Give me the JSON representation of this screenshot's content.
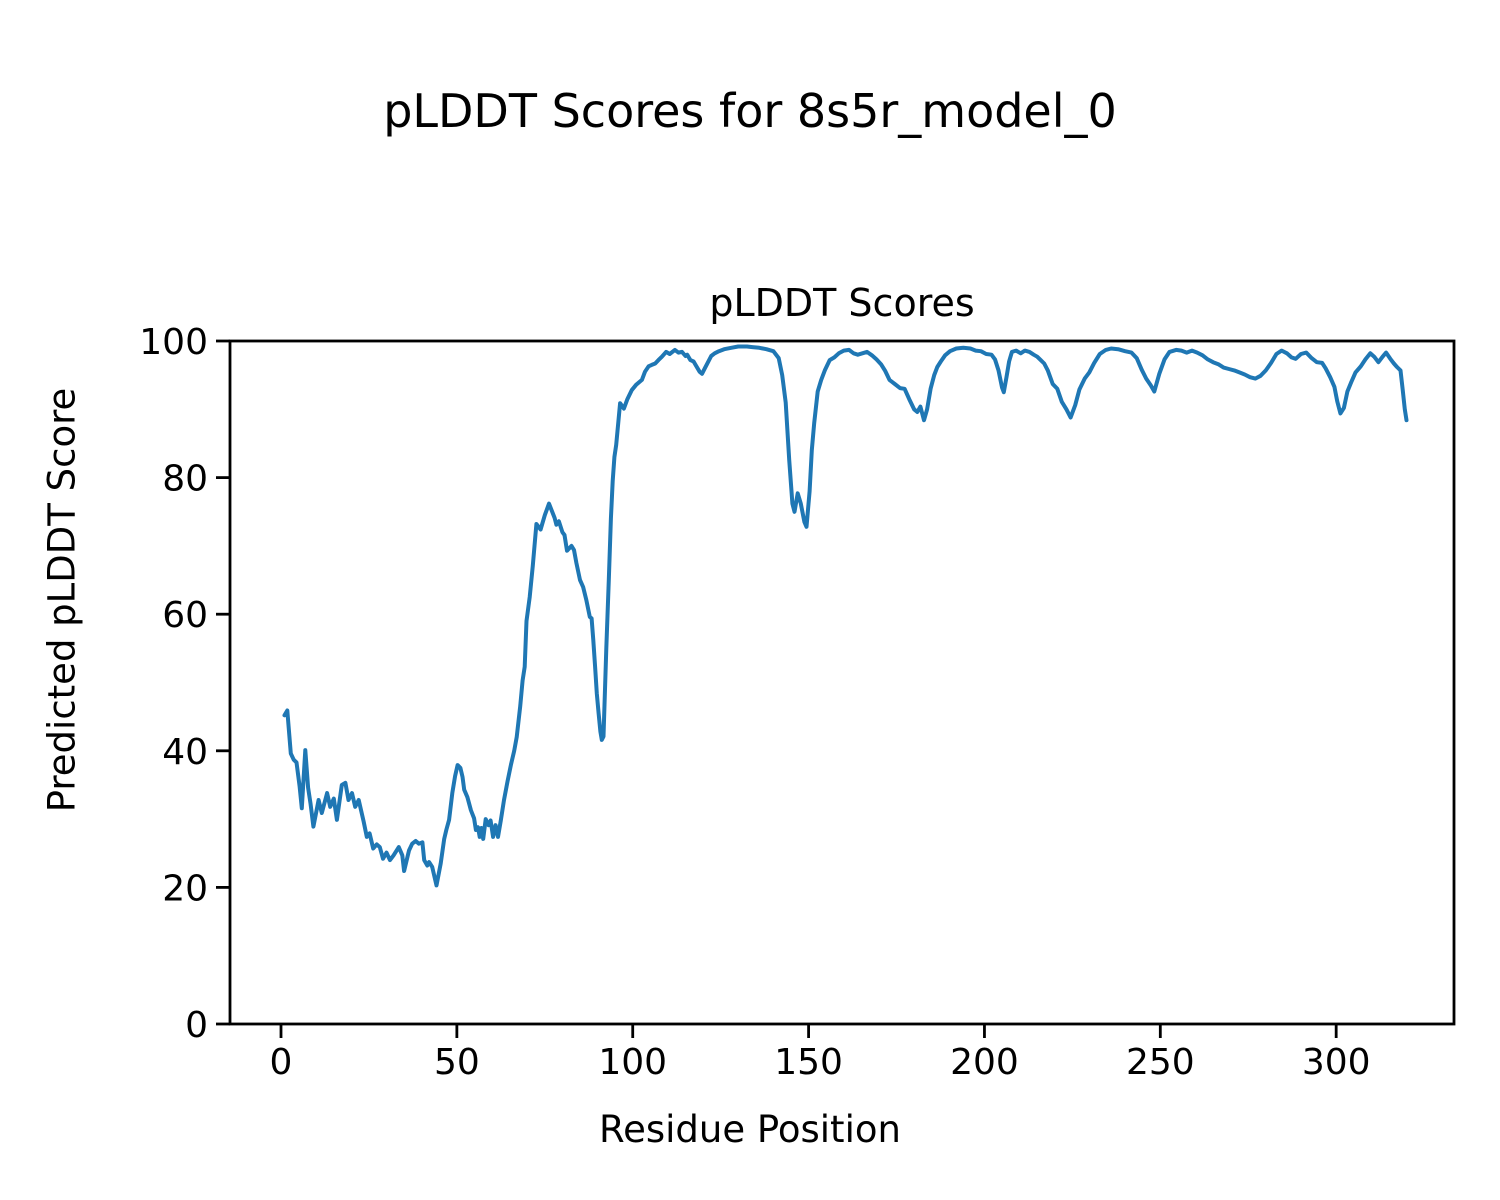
{
  "figure": {
    "title": "pLDDT Scores for 8s5r_model_0"
  },
  "chart_data": {
    "type": "line",
    "title": "pLDDT Scores for 8s5r_model_0",
    "axes_title": "pLDDT Scores",
    "xlabel": "Residue Position",
    "ylabel": "Predicted pLDDT Score",
    "xticks": [
      0,
      50,
      100,
      150,
      200,
      250,
      300
    ],
    "yticks": [
      0,
      20,
      40,
      60,
      80,
      100
    ],
    "xlim": [
      -14.5,
      333.5
    ],
    "ylim": [
      0,
      100
    ],
    "grid": false,
    "legend_position": "none",
    "line_color": "#1f77b4",
    "background_color": "#ffffff",
    "series": [
      {
        "name": "pLDDT",
        "points": [
          [
            1,
            45.2
          ],
          [
            1.8,
            45.9
          ],
          [
            2.8,
            39.6
          ],
          [
            3.6,
            38.7
          ],
          [
            4.4,
            38.3
          ],
          [
            5.3,
            34.8
          ],
          [
            5.9,
            31.6
          ],
          [
            6.9,
            40.1
          ],
          [
            7.7,
            34.6
          ],
          [
            8.4,
            32.3
          ],
          [
            9.2,
            28.9
          ],
          [
            10.7,
            32.8
          ],
          [
            11.6,
            30.9
          ],
          [
            13.1,
            33.8
          ],
          [
            14,
            31.8
          ],
          [
            15,
            33
          ],
          [
            15.9,
            29.9
          ],
          [
            17.3,
            35
          ],
          [
            18.3,
            35.3
          ],
          [
            19.2,
            32.8
          ],
          [
            20.2,
            33.8
          ],
          [
            21.1,
            31.8
          ],
          [
            22.1,
            32.8
          ],
          [
            23.5,
            29.6
          ],
          [
            24.4,
            27.4
          ],
          [
            25.2,
            27.9
          ],
          [
            26.2,
            25.7
          ],
          [
            27.2,
            26.3
          ],
          [
            28.1,
            25.9
          ],
          [
            29,
            24.2
          ],
          [
            30,
            25.1
          ],
          [
            31,
            24
          ],
          [
            32,
            24.7
          ],
          [
            33.5,
            25.9
          ],
          [
            34.5,
            24.7
          ],
          [
            35,
            22.4
          ],
          [
            36.4,
            25.4
          ],
          [
            37.3,
            26.4
          ],
          [
            38.3,
            26.8
          ],
          [
            39.2,
            26.4
          ],
          [
            40.2,
            26.6
          ],
          [
            40.7,
            24
          ],
          [
            41.6,
            23.2
          ],
          [
            42.1,
            23.7
          ],
          [
            43,
            23
          ],
          [
            44.2,
            20.3
          ],
          [
            45.4,
            23.5
          ],
          [
            46.4,
            27.1
          ],
          [
            47,
            28.4
          ],
          [
            47.8,
            29.9
          ],
          [
            48.7,
            33.8
          ],
          [
            49.5,
            36.3
          ],
          [
            50.2,
            37.9
          ],
          [
            51,
            37.5
          ],
          [
            51.6,
            36.2
          ],
          [
            52.1,
            34.3
          ],
          [
            53,
            33.2
          ],
          [
            54,
            31.3
          ],
          [
            54.9,
            30.1
          ],
          [
            55.4,
            28.4
          ],
          [
            56,
            28.8
          ],
          [
            56.5,
            27.4
          ],
          [
            57,
            28.7
          ],
          [
            57.5,
            27.1
          ],
          [
            58.2,
            30
          ],
          [
            59,
            29.1
          ],
          [
            59.6,
            29.8
          ],
          [
            60.3,
            27.4
          ],
          [
            61,
            29.1
          ],
          [
            61.7,
            27.4
          ],
          [
            62.5,
            29.8
          ],
          [
            63.4,
            32.8
          ],
          [
            64.4,
            35.5
          ],
          [
            65.4,
            38
          ],
          [
            66.3,
            40
          ],
          [
            67,
            42
          ],
          [
            68,
            46.5
          ],
          [
            68.7,
            50.3
          ],
          [
            69.3,
            52.3
          ],
          [
            69.8,
            59
          ],
          [
            70.7,
            62.5
          ],
          [
            71.6,
            67.1
          ],
          [
            72.6,
            73.2
          ],
          [
            73.8,
            72.4
          ],
          [
            75,
            74.5
          ],
          [
            76.2,
            76.2
          ],
          [
            77.8,
            74.1
          ],
          [
            78.3,
            73.1
          ],
          [
            79,
            73.6
          ],
          [
            80,
            72
          ],
          [
            80.6,
            71.6
          ],
          [
            81.3,
            69.3
          ],
          [
            82.6,
            70
          ],
          [
            83.3,
            69.4
          ],
          [
            84,
            67.5
          ],
          [
            85,
            65
          ],
          [
            85.9,
            64
          ],
          [
            86.8,
            62.1
          ],
          [
            87.8,
            59.6
          ],
          [
            88.3,
            59.4
          ],
          [
            88.8,
            56.2
          ],
          [
            89.3,
            52.3
          ],
          [
            89.8,
            48.4
          ],
          [
            90.3,
            45.5
          ],
          [
            90.8,
            42.8
          ],
          [
            91.2,
            41.6
          ],
          [
            91.7,
            42.1
          ],
          [
            92.5,
            55
          ],
          [
            93.2,
            65
          ],
          [
            93.8,
            74
          ],
          [
            94.3,
            79.5
          ],
          [
            94.8,
            83
          ],
          [
            95.3,
            84.8
          ],
          [
            96.4,
            90.9
          ],
          [
            97.5,
            90.1
          ],
          [
            98.5,
            91.5
          ],
          [
            99.7,
            92.8
          ],
          [
            101,
            93.6
          ],
          [
            102.6,
            94.3
          ],
          [
            103.5,
            95.5
          ],
          [
            104.5,
            96.3
          ],
          [
            105.4,
            96.5
          ],
          [
            106.4,
            96.7
          ],
          [
            107.3,
            97.2
          ],
          [
            108.3,
            97.7
          ],
          [
            109.5,
            98.4
          ],
          [
            110.5,
            98.1
          ],
          [
            112,
            98.7
          ],
          [
            113,
            98.3
          ],
          [
            114,
            98.4
          ],
          [
            115,
            97.8
          ],
          [
            115.5,
            98
          ],
          [
            116.4,
            97.2
          ],
          [
            117.3,
            97
          ],
          [
            118,
            96.4
          ],
          [
            119,
            95.5
          ],
          [
            119.7,
            95.2
          ],
          [
            120.5,
            96
          ],
          [
            121.3,
            96.8
          ],
          [
            122.3,
            97.8
          ],
          [
            123.3,
            98.2
          ],
          [
            124.5,
            98.5
          ],
          [
            126,
            98.8
          ],
          [
            128,
            99
          ],
          [
            130,
            99.2
          ],
          [
            132.5,
            99.2
          ],
          [
            134,
            99.1
          ],
          [
            136,
            99
          ],
          [
            138,
            98.8
          ],
          [
            140,
            98.5
          ],
          [
            141.5,
            97.5
          ],
          [
            142.5,
            95
          ],
          [
            143.5,
            91
          ],
          [
            144.5,
            82.6
          ],
          [
            145.4,
            76.2
          ],
          [
            146,
            75
          ],
          [
            146.9,
            77.7
          ],
          [
            147.8,
            76.2
          ],
          [
            148.8,
            73.5
          ],
          [
            149.4,
            72.8
          ],
          [
            150.3,
            78
          ],
          [
            150.9,
            84
          ],
          [
            151.6,
            88
          ],
          [
            152.6,
            92.6
          ],
          [
            153.6,
            94.3
          ],
          [
            154.6,
            95.7
          ],
          [
            156,
            97.2
          ],
          [
            157.3,
            97.6
          ],
          [
            158.6,
            98.2
          ],
          [
            160,
            98.6
          ],
          [
            161.5,
            98.7
          ],
          [
            162.8,
            98.2
          ],
          [
            164,
            98
          ],
          [
            165.3,
            98.2
          ],
          [
            166.6,
            98.4
          ],
          [
            168,
            97.9
          ],
          [
            169.3,
            97.3
          ],
          [
            170.6,
            96.6
          ],
          [
            171.8,
            95.6
          ],
          [
            173,
            94.3
          ],
          [
            174.5,
            93.7
          ],
          [
            176,
            93.1
          ],
          [
            177.3,
            93
          ],
          [
            178.6,
            91.5
          ],
          [
            180,
            90
          ],
          [
            180.9,
            89.6
          ],
          [
            181.8,
            90.4
          ],
          [
            182.8,
            88.4
          ],
          [
            183.7,
            90
          ],
          [
            184.7,
            93
          ],
          [
            185.7,
            95
          ],
          [
            186.6,
            96.2
          ],
          [
            187.6,
            97
          ],
          [
            188.8,
            97.9
          ],
          [
            190.2,
            98.5
          ],
          [
            192,
            98.9
          ],
          [
            194,
            99
          ],
          [
            196,
            98.9
          ],
          [
            197.5,
            98.6
          ],
          [
            199,
            98.5
          ],
          [
            200.5,
            98.1
          ],
          [
            202,
            98
          ],
          [
            203,
            97.3
          ],
          [
            204,
            95.7
          ],
          [
            205,
            93.2
          ],
          [
            205.5,
            92.5
          ],
          [
            206.3,
            94.8
          ],
          [
            207,
            97
          ],
          [
            207.8,
            98.4
          ],
          [
            209,
            98.6
          ],
          [
            210.3,
            98.2
          ],
          [
            211.5,
            98.6
          ],
          [
            212.8,
            98.4
          ],
          [
            214,
            98
          ],
          [
            215,
            97.7
          ],
          [
            216,
            97.2
          ],
          [
            217,
            96.7
          ],
          [
            218,
            95.7
          ],
          [
            219.4,
            93.7
          ],
          [
            220.7,
            93
          ],
          [
            222,
            91.1
          ],
          [
            223.3,
            90
          ],
          [
            224.5,
            88.8
          ],
          [
            225.8,
            90.6
          ],
          [
            227,
            92.9
          ],
          [
            228.5,
            94.5
          ],
          [
            229.8,
            95.4
          ],
          [
            231.2,
            96.8
          ],
          [
            232.8,
            98.1
          ],
          [
            234.5,
            98.7
          ],
          [
            236,
            98.9
          ],
          [
            238,
            98.8
          ],
          [
            240,
            98.5
          ],
          [
            241.8,
            98.3
          ],
          [
            243.3,
            97.5
          ],
          [
            244.7,
            95.8
          ],
          [
            246,
            94.5
          ],
          [
            247.3,
            93.5
          ],
          [
            248.3,
            92.6
          ],
          [
            249.7,
            95.2
          ],
          [
            251.2,
            97.3
          ],
          [
            252.6,
            98.4
          ],
          [
            254.5,
            98.7
          ],
          [
            256,
            98.6
          ],
          [
            257.5,
            98.3
          ],
          [
            259,
            98.6
          ],
          [
            260.5,
            98.3
          ],
          [
            262,
            97.9
          ],
          [
            263.5,
            97.3
          ],
          [
            265,
            96.9
          ],
          [
            266.5,
            96.6
          ],
          [
            268,
            96.1
          ],
          [
            269.5,
            95.9
          ],
          [
            271,
            95.7
          ],
          [
            272.5,
            95.4
          ],
          [
            274,
            95.1
          ],
          [
            275.5,
            94.7
          ],
          [
            277,
            94.5
          ],
          [
            278.5,
            94.9
          ],
          [
            280,
            95.7
          ],
          [
            281.5,
            96.8
          ],
          [
            283,
            98.1
          ],
          [
            284.5,
            98.6
          ],
          [
            286,
            98.2
          ],
          [
            287.3,
            97.6
          ],
          [
            288.5,
            97.4
          ],
          [
            290,
            98.1
          ],
          [
            291.5,
            98.3
          ],
          [
            293,
            97.5
          ],
          [
            294.5,
            96.9
          ],
          [
            296,
            96.8
          ],
          [
            297,
            96
          ],
          [
            298.3,
            94.7
          ],
          [
            299.5,
            93.3
          ],
          [
            300.3,
            91.2
          ],
          [
            301.2,
            89.4
          ],
          [
            302.2,
            90.2
          ],
          [
            303.2,
            92.6
          ],
          [
            304.3,
            94
          ],
          [
            305.5,
            95.4
          ],
          [
            307,
            96.3
          ],
          [
            308.3,
            97.3
          ],
          [
            309.7,
            98.2
          ],
          [
            310.8,
            97.7
          ],
          [
            312,
            96.9
          ],
          [
            313.2,
            97.7
          ],
          [
            314.2,
            98.3
          ],
          [
            315.4,
            97.4
          ],
          [
            316.4,
            96.7
          ],
          [
            317.3,
            96.2
          ],
          [
            318.3,
            95.7
          ],
          [
            318.9,
            93
          ],
          [
            319.5,
            90
          ],
          [
            320,
            88.4
          ]
        ]
      }
    ]
  }
}
